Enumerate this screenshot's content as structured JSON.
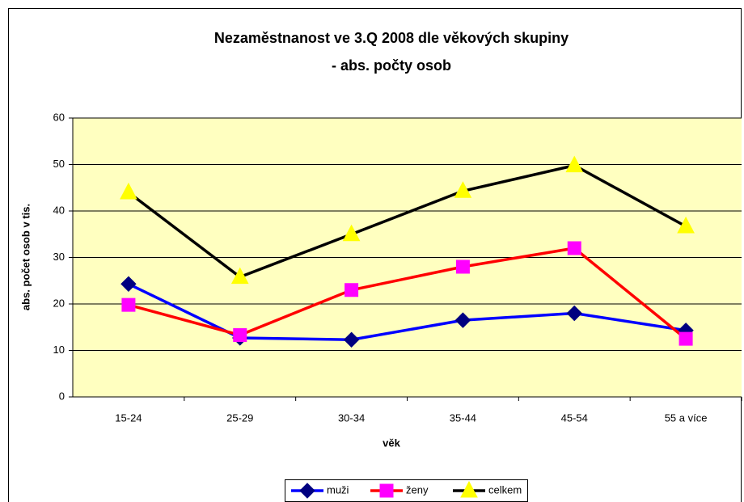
{
  "chart_data": {
    "type": "line",
    "title": [
      "Nezaměstnanost ve 3.Q 2008 dle věkových skupiny",
      "- abs. počty osob"
    ],
    "x_label": "věk",
    "y_label": "abs. počet osob v tis.",
    "categories": [
      "15-24",
      "25-29",
      "30-34",
      "35-44",
      "45-54",
      "55 a více"
    ],
    "series": [
      {
        "name": "muži",
        "color": "#0000ff",
        "marker_color": "#000080",
        "marker": "diamond",
        "values": [
          24.3,
          12.7,
          12.3,
          16.5,
          18.0,
          14.3
        ]
      },
      {
        "name": "ženy",
        "color": "#ff0000",
        "marker_color": "#ff00ff",
        "marker": "square",
        "values": [
          19.8,
          13.3,
          23.0,
          28.0,
          32.0,
          12.5
        ]
      },
      {
        "name": "celkem",
        "color": "#000000",
        "marker_color": "#ffff00",
        "marker": "triangle",
        "values": [
          44.0,
          25.8,
          35.0,
          44.3,
          49.8,
          36.7
        ]
      }
    ],
    "ylim": [
      0,
      60
    ],
    "yticks": [
      0,
      10,
      20,
      30,
      40,
      50,
      60
    ],
    "grid": true,
    "plot_background": "#ffffc0",
    "legend": "bottom"
  }
}
